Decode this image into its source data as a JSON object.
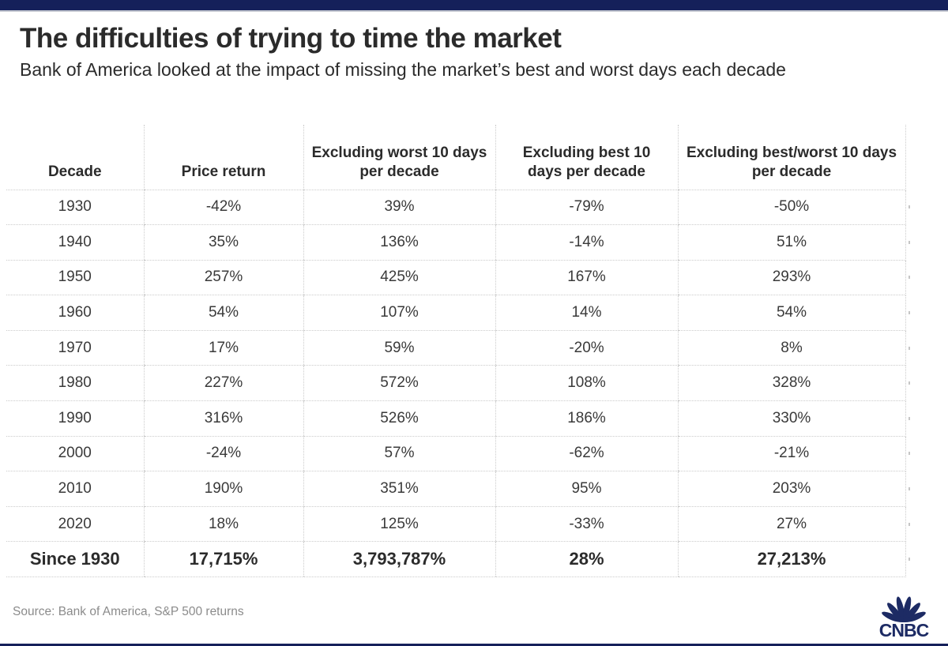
{
  "chart_data": {
    "type": "table",
    "title": "The difficulties of trying to time the market",
    "subtitle": "Bank of America looked at the impact of missing the market’s best and worst days each decade",
    "source": "Source: Bank of America, S&P 500 returns",
    "columns": [
      "Decade",
      "Price return",
      "Excluding worst 10 days per decade",
      "Excluding best 10 days per decade",
      "Excluding best/worst 10 days per decade"
    ],
    "rows": [
      [
        "1930",
        "-42%",
        "39%",
        "-79%",
        "-50%"
      ],
      [
        "1940",
        "35%",
        "136%",
        "-14%",
        "51%"
      ],
      [
        "1950",
        "257%",
        "425%",
        "167%",
        "293%"
      ],
      [
        "1960",
        "54%",
        "107%",
        "14%",
        "54%"
      ],
      [
        "1970",
        "17%",
        "59%",
        "-20%",
        "8%"
      ],
      [
        "1980",
        "227%",
        "572%",
        "108%",
        "328%"
      ],
      [
        "1990",
        "316%",
        "526%",
        "186%",
        "330%"
      ],
      [
        "2000",
        "-24%",
        "57%",
        "-62%",
        "-21%"
      ],
      [
        "2010",
        "190%",
        "351%",
        "95%",
        "203%"
      ],
      [
        "2020",
        "18%",
        "125%",
        "-33%",
        "27%"
      ],
      [
        "Since 1930",
        "17,715%",
        "3,793,787%",
        "28%",
        "27,213%"
      ]
    ],
    "total_row_label": "Since 1930",
    "grid": "dotted",
    "legend": "none"
  },
  "branding": {
    "logo_text": "CNBC"
  },
  "colors": {
    "top_bar_navy": "#15205A",
    "logo_navy": "#1D2B64",
    "title_text": "#2B2B2B",
    "body_text": "#3A3A3A",
    "source_text": "#8B8B8B",
    "grid_line": "#CBCBCB"
  }
}
